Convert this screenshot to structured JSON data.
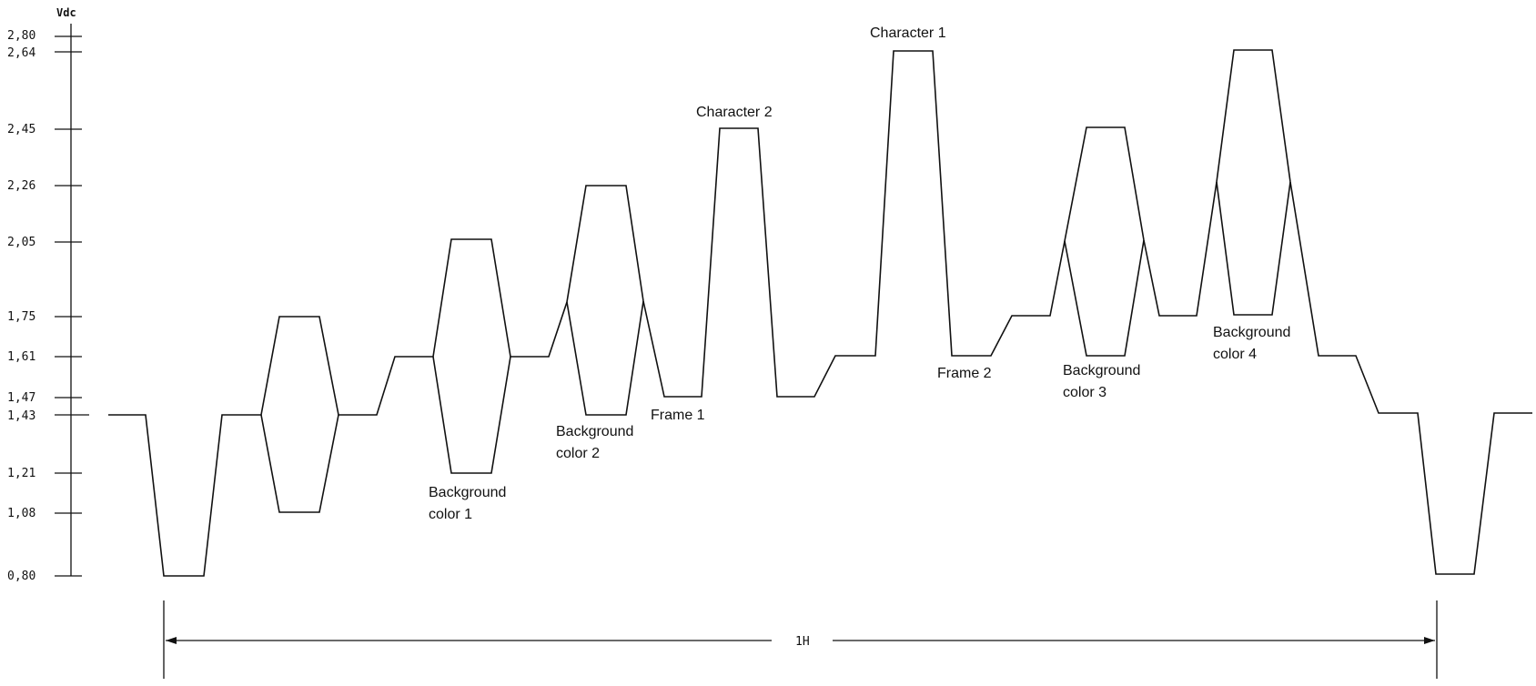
{
  "axis": {
    "unit": "Vdc",
    "ticks": [
      "2,80",
      "2,64",
      "2,45",
      "2,26",
      "2,05",
      "1,75",
      "1,61",
      "1,47",
      "1,43",
      "1,21",
      "1,08",
      "0,80"
    ]
  },
  "labels": {
    "character_1": "Character 1",
    "character_2": "Character 2",
    "frame_1": "Frame 1",
    "frame_2": "Frame 2",
    "background_color_1": [
      "Background",
      "color 1"
    ],
    "background_color_2": [
      "Background",
      "color 2"
    ],
    "background_color_3": [
      "Background",
      "color 3"
    ],
    "background_color_4": [
      "Background",
      "color 4"
    ]
  },
  "period": {
    "label": "1H"
  }
}
